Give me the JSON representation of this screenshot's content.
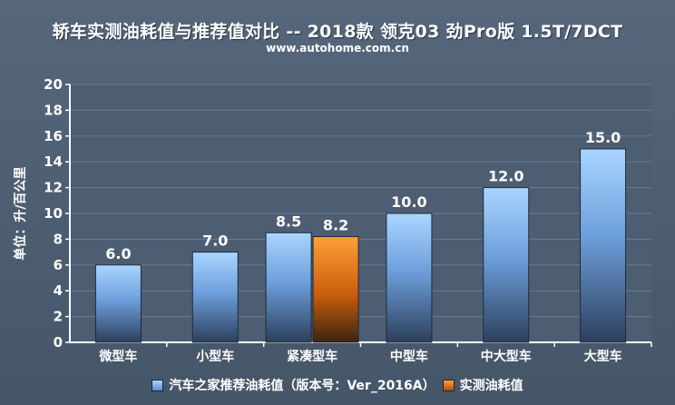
{
  "header": {
    "title": "轿车实测油耗值与推荐值对比 -- 2018款 领克03 劲Pro版 1.5T/7DCT",
    "subtitle": "www.autohome.com.cn"
  },
  "colors": {
    "recommended": "#6fa6e6",
    "actual": "#e0761a",
    "axis": "#ffffff",
    "grid": "#6b7b8f",
    "background": "#4f6075"
  },
  "chart_data": {
    "type": "bar",
    "title": "轿车实测油耗值与推荐值对比 -- 2018款 领克03 劲Pro版 1.5T/7DCT",
    "ylabel": "单位：升/百公里",
    "xlabel": "",
    "ylim": [
      0,
      20
    ],
    "yticks": [
      0,
      2,
      4,
      6,
      8,
      10,
      12,
      14,
      16,
      18,
      20
    ],
    "grid": true,
    "legend_position": "bottom",
    "categories": [
      "微型车",
      "小型车",
      "紧凑型车",
      "中型车",
      "中大型车",
      "大型车"
    ],
    "series": [
      {
        "name": "汽车之家推荐油耗值（版本号：Ver_2016A）",
        "values": [
          6.0,
          7.0,
          8.5,
          10.0,
          12.0,
          15.0
        ]
      },
      {
        "name": "实测油耗值",
        "values": [
          null,
          null,
          8.2,
          null,
          null,
          null
        ]
      }
    ]
  }
}
